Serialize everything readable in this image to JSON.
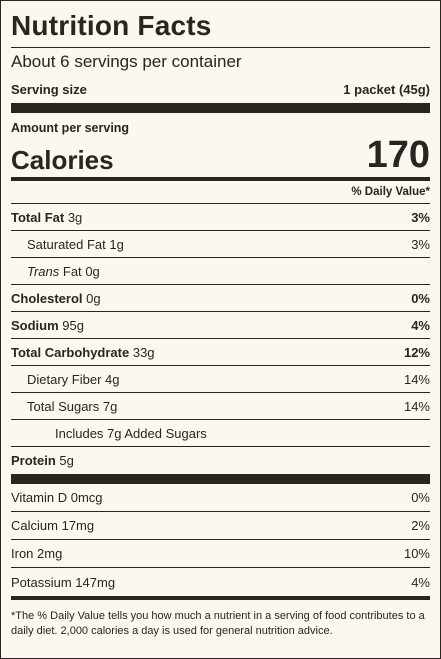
{
  "title": "Nutrition Facts",
  "servings_per_container": "About 6 servings per container",
  "serving_size": {
    "label": "Serving size",
    "value": "1 packet (45g)"
  },
  "amount_per_serving": "Amount per serving",
  "calories": {
    "label": "Calories",
    "value": "170"
  },
  "daily_value_header": "% Daily Value*",
  "nutrients": {
    "total_fat": {
      "label": "Total Fat",
      "amount": "3g",
      "dv": "3%"
    },
    "saturated_fat": {
      "label": "Saturated Fat",
      "amount": "1g",
      "dv": "3%"
    },
    "trans_fat": {
      "label_italic": "Trans",
      "label_rest": "Fat",
      "amount": "0g"
    },
    "cholesterol": {
      "label": "Cholesterol",
      "amount": "0g",
      "dv": "0%"
    },
    "sodium": {
      "label": "Sodium",
      "amount": "95g",
      "dv": "4%"
    },
    "total_carbohydrate": {
      "label": "Total Carbohydrate",
      "amount": "33g",
      "dv": "12%"
    },
    "dietary_fiber": {
      "label": "Dietary Fiber",
      "amount": "4g",
      "dv": "14%"
    },
    "total_sugars": {
      "label": "Total Sugars",
      "amount": "7g",
      "dv": "14%"
    },
    "added_sugars": {
      "label": "Includes 7g Added Sugars"
    },
    "protein": {
      "label": "Protein",
      "amount": "5g"
    }
  },
  "vitamins": [
    {
      "label": "Vitamin D 0mcg",
      "dv": "0%"
    },
    {
      "label": "Calcium 17mg",
      "dv": "2%"
    },
    {
      "label": "Iron 2mg",
      "dv": "10%"
    },
    {
      "label": "Potassium 147mg",
      "dv": "4%"
    }
  ],
  "footnote": "*The % Daily Value tells you how much a nutrient in a serving of food contributes to a daily diet. 2,000 calories a day is used for general nutrition advice."
}
